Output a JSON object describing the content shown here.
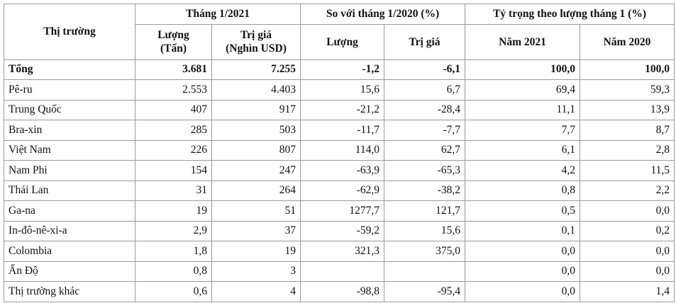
{
  "table": {
    "market_header": "Thị trường",
    "groups": [
      "Tháng 1/2021",
      "So với tháng 1/2020 (%)",
      "Tỷ trọng theo lượng tháng 1 (%)"
    ],
    "subheaders": [
      "Lượng\n(Tấn)",
      "Trị giá\n(Nghìn USD)",
      "Lượng",
      "Trị giá",
      "Năm 2021",
      "Năm 2020"
    ],
    "rows": [
      [
        "Tổng",
        "3.681",
        "7.255",
        "-1,2",
        "-6,1",
        "100,0",
        "100,0"
      ],
      [
        "Pê-ru",
        "2.553",
        "4.403",
        "15,6",
        "6,7",
        "69,4",
        "59,3"
      ],
      [
        "Trung Quốc",
        "407",
        "917",
        "-21,2",
        "-28,4",
        "11,1",
        "13,9"
      ],
      [
        "Bra-xin",
        "285",
        "503",
        "-11,7",
        "-7,7",
        "7,7",
        "8,7"
      ],
      [
        "Việt Nam",
        "226",
        "807",
        "114,0",
        "62,7",
        "6,1",
        "2,8"
      ],
      [
        "Nam Phi",
        "154",
        "247",
        "-63,9",
        "-65,3",
        "4,2",
        "11,5"
      ],
      [
        "Thái Lan",
        "31",
        "264",
        "-62,9",
        "-38,2",
        "0,8",
        "2,2"
      ],
      [
        "Ga-na",
        "19",
        "51",
        "1277,7",
        "121,7",
        "0,5",
        "0,0"
      ],
      [
        "In-đô-nê-xi-a",
        "2,9",
        "37",
        "-59,2",
        "15,6",
        "0,1",
        "0,2"
      ],
      [
        "Colombia",
        "1,8",
        "19",
        "321,3",
        "375,0",
        "0,0",
        "0,0"
      ],
      [
        "Ấn Độ",
        "0,8",
        "3",
        null,
        null,
        "0,0",
        "0,0"
      ],
      [
        "Thị trường khác",
        "0,6",
        "4",
        "-98,8",
        "-95,4",
        "0,0",
        "1,4"
      ]
    ]
  }
}
